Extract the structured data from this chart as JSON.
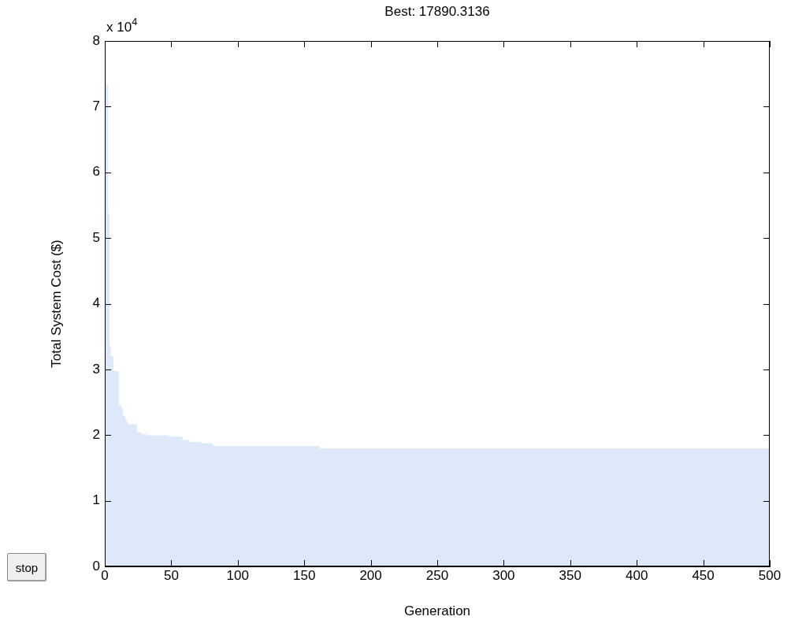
{
  "chart_data": {
    "type": "area",
    "title": "Best: 17890.3136",
    "xlabel": "Generation",
    "ylabel": "Total System Cost ($)",
    "annotations": [
      "x 10$^{4}$",
      "stop"
    ],
    "series": [
      {
        "color": "#dde9f9",
        "x": [
          0,
          2,
          2,
          3,
          3,
          4,
          4,
          6,
          6,
          10,
          10,
          12,
          12,
          13,
          13,
          15,
          15,
          16,
          16,
          17,
          17,
          24,
          24,
          27,
          27,
          31,
          31,
          48,
          48,
          58,
          58,
          63,
          63,
          72,
          72,
          81,
          81,
          161,
          161,
          500
        ],
        "values": [
          7.34,
          7.34,
          5.37,
          5.37,
          3.35,
          3.35,
          3.2,
          3.2,
          2.97,
          2.97,
          2.45,
          2.45,
          2.41,
          2.41,
          2.29,
          2.29,
          2.23,
          2.23,
          2.2,
          2.2,
          2.16,
          2.16,
          2.04,
          2.04,
          2.01,
          2.01,
          1.99,
          1.99,
          1.97,
          1.97,
          1.92,
          1.92,
          1.89,
          1.89,
          1.87,
          1.87,
          1.83,
          1.83,
          1.79,
          1.79
        ]
      }
    ],
    "xlim": [
      0,
      500
    ],
    "xticks": [
      0,
      50,
      100,
      150,
      200,
      250,
      300,
      350,
      400,
      450,
      500
    ],
    "ylim": [
      0,
      8
    ],
    "yticks": [
      0,
      1,
      2,
      3,
      4,
      5,
      6,
      7,
      8
    ],
    "grid": false,
    "legend": false
  }
}
